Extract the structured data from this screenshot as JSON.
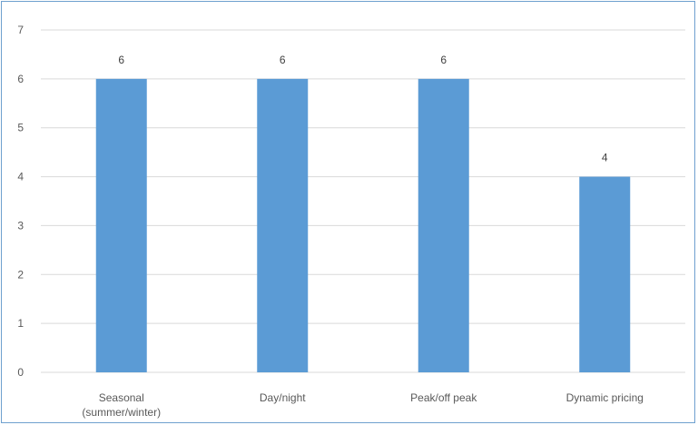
{
  "chart_data": {
    "type": "bar",
    "title": "",
    "xlabel": "",
    "ylabel": "",
    "categories": [
      [
        "Seasonal",
        "(summer/winter)"
      ],
      [
        "Day/night"
      ],
      [
        "Peak/off peak"
      ],
      [
        "Dynamic pricing"
      ]
    ],
    "values": [
      6,
      6,
      6,
      4
    ],
    "ylim": [
      0,
      7
    ],
    "yticks": [
      0,
      1,
      2,
      3,
      4,
      5,
      6,
      7
    ],
    "grid": true,
    "data_labels": true,
    "bar_color": "#5b9bd5",
    "grid_color": "#d9d9d9"
  }
}
